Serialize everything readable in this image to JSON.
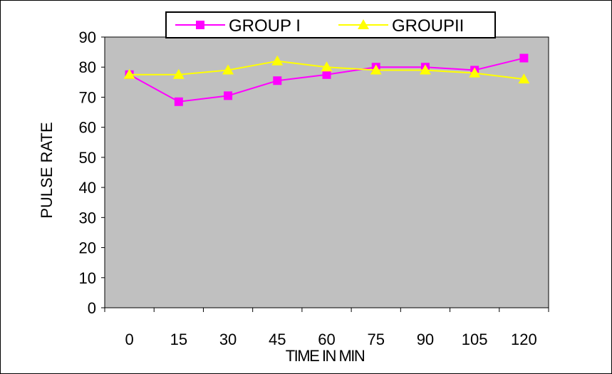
{
  "chart_data": {
    "type": "line",
    "title": "",
    "xlabel": "TIME IN MIN",
    "ylabel": "PULSE RATE",
    "categories": [
      "0",
      "15",
      "30",
      "45",
      "60",
      "75",
      "90",
      "105",
      "120"
    ],
    "ylim": [
      0,
      90
    ],
    "yticks": [
      0,
      10,
      20,
      30,
      40,
      50,
      60,
      70,
      80,
      90
    ],
    "grid": false,
    "legend_position": "top",
    "plot_background": "#c0c0c0",
    "series": [
      {
        "name": "GROUP I",
        "color": "#ff00ff",
        "marker": "square",
        "values": [
          77.5,
          68.5,
          70.5,
          75.5,
          77.5,
          80,
          80,
          79,
          83
        ]
      },
      {
        "name": "GROUPII",
        "color": "#ffff00",
        "marker": "triangle",
        "values": [
          77.5,
          77.5,
          79,
          82,
          80,
          79,
          79,
          78,
          76
        ]
      }
    ]
  }
}
